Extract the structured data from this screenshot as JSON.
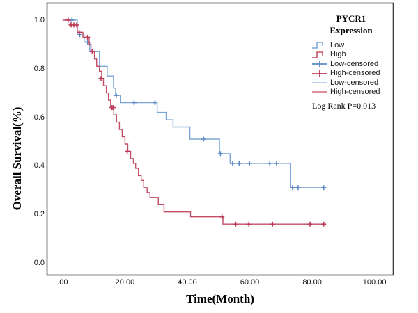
{
  "axes": {
    "y_label": "Overall Survival(%)",
    "x_label": "Time(Month)",
    "y_ticks": [
      "1.0",
      "0.8",
      "0.6",
      "0.4",
      "0.2",
      "0.0"
    ],
    "x_ticks": [
      ".00",
      "20.00",
      "40.00",
      "60.00",
      "80.00",
      "100.00"
    ]
  },
  "legend": {
    "title_line1": "PYCR1",
    "title_line2": "Expression",
    "items": [
      {
        "label": "Low",
        "symbol": "step",
        "color": "#7da6d8"
      },
      {
        "label": "High",
        "symbol": "step",
        "color": "#c44e66"
      },
      {
        "label": "Low-censored",
        "symbol": "plus",
        "color": "#5d89c6"
      },
      {
        "label": "High-censored",
        "symbol": "plus",
        "color": "#bd3a58"
      },
      {
        "label": "Low-censored",
        "symbol": "line",
        "color": "#a6c1e2"
      },
      {
        "label": "High-censored",
        "symbol": "line",
        "color": "#d3687e"
      }
    ],
    "note": "Log Rank P=0.013"
  },
  "chart_data": {
    "type": "line",
    "subtype": "kaplan-meier-step",
    "title": "PYCR1 Expression",
    "xlabel": "Time(Month)",
    "ylabel": "Overall Survival(%)",
    "xlim": [
      -5,
      106
    ],
    "ylim": [
      -0.05,
      1.07
    ],
    "xticks": [
      0,
      20,
      40,
      60,
      80,
      100
    ],
    "xticklabels": [
      ".00",
      "20.00",
      "40.00",
      "60.00",
      "80.00",
      "100.00"
    ],
    "yticks": [
      1.0,
      0.8,
      0.6,
      0.4,
      0.2,
      0.0
    ],
    "yticklabels": [
      "1.0",
      "0.8",
      "0.6",
      "0.4",
      "0.2",
      "0.0"
    ],
    "grid": false,
    "legend_position": "upper-right-inside",
    "annotation": "Log Rank P=0.013",
    "log_rank_p": 0.013,
    "frame_color": "#3c3c3c",
    "series": [
      {
        "name": "Low",
        "color": "#7da6d8",
        "censor_color": "#5d89c6",
        "end_time": 84,
        "steps": [
          [
            0,
            1.0
          ],
          [
            4.7,
            0.94
          ],
          [
            6.9,
            0.91
          ],
          [
            8.7,
            0.87
          ],
          [
            11.8,
            0.81
          ],
          [
            14.3,
            0.77
          ],
          [
            16.3,
            0.72
          ],
          [
            17.0,
            0.69
          ],
          [
            18.5,
            0.66
          ],
          [
            30.3,
            0.62
          ],
          [
            33.2,
            0.59
          ],
          [
            35.4,
            0.56
          ],
          [
            40.8,
            0.51
          ],
          [
            50.3,
            0.45
          ],
          [
            53.7,
            0.41
          ],
          [
            73.0,
            0.31
          ]
        ],
        "censored": [
          [
            3.0,
            1.0
          ],
          [
            5.5,
            0.94
          ],
          [
            8.0,
            0.91
          ],
          [
            17.2,
            0.69
          ],
          [
            22.9,
            0.66
          ],
          [
            29.6,
            0.66
          ],
          [
            45.2,
            0.51
          ],
          [
            50.6,
            0.45
          ],
          [
            54.5,
            0.41
          ],
          [
            56.6,
            0.41
          ],
          [
            59.9,
            0.41
          ],
          [
            66.4,
            0.41
          ],
          [
            68.6,
            0.41
          ],
          [
            73.7,
            0.31
          ],
          [
            75.5,
            0.31
          ],
          [
            83.7,
            0.31
          ]
        ]
      },
      {
        "name": "High",
        "color": "#c44e66",
        "censor_color": "#bd3a58",
        "end_time": 84,
        "steps": [
          [
            0,
            1.0
          ],
          [
            2.4,
            0.98
          ],
          [
            4.7,
            0.95
          ],
          [
            6.5,
            0.93
          ],
          [
            8.5,
            0.9
          ],
          [
            9.1,
            0.87
          ],
          [
            10.2,
            0.84
          ],
          [
            10.9,
            0.81
          ],
          [
            11.8,
            0.79
          ],
          [
            12.5,
            0.76
          ],
          [
            13.1,
            0.73
          ],
          [
            14.0,
            0.7
          ],
          [
            14.7,
            0.67
          ],
          [
            15.4,
            0.64
          ],
          [
            16.4,
            0.61
          ],
          [
            17.3,
            0.58
          ],
          [
            18.2,
            0.55
          ],
          [
            19.1,
            0.52
          ],
          [
            20.0,
            0.49
          ],
          [
            20.9,
            0.46
          ],
          [
            21.8,
            0.43
          ],
          [
            22.7,
            0.41
          ],
          [
            23.4,
            0.39
          ],
          [
            24.3,
            0.36
          ],
          [
            25.2,
            0.34
          ],
          [
            26.0,
            0.31
          ],
          [
            27.1,
            0.29
          ],
          [
            28.0,
            0.27
          ],
          [
            30.7,
            0.24
          ],
          [
            32.5,
            0.21
          ],
          [
            41.0,
            0.19
          ],
          [
            51.4,
            0.16
          ]
        ],
        "censored": [
          [
            1.8,
            1.0
          ],
          [
            2.7,
            0.98
          ],
          [
            3.6,
            0.98
          ],
          [
            4.5,
            0.98
          ],
          [
            5.3,
            0.95
          ],
          [
            8.0,
            0.93
          ],
          [
            9.5,
            0.87
          ],
          [
            12.3,
            0.76
          ],
          [
            15.8,
            0.64
          ],
          [
            16.2,
            0.64
          ],
          [
            20.7,
            0.46
          ],
          [
            51.1,
            0.19
          ],
          [
            55.5,
            0.16
          ],
          [
            59.7,
            0.16
          ],
          [
            67.3,
            0.16
          ],
          [
            79.3,
            0.16
          ],
          [
            83.7,
            0.16
          ]
        ]
      }
    ]
  }
}
